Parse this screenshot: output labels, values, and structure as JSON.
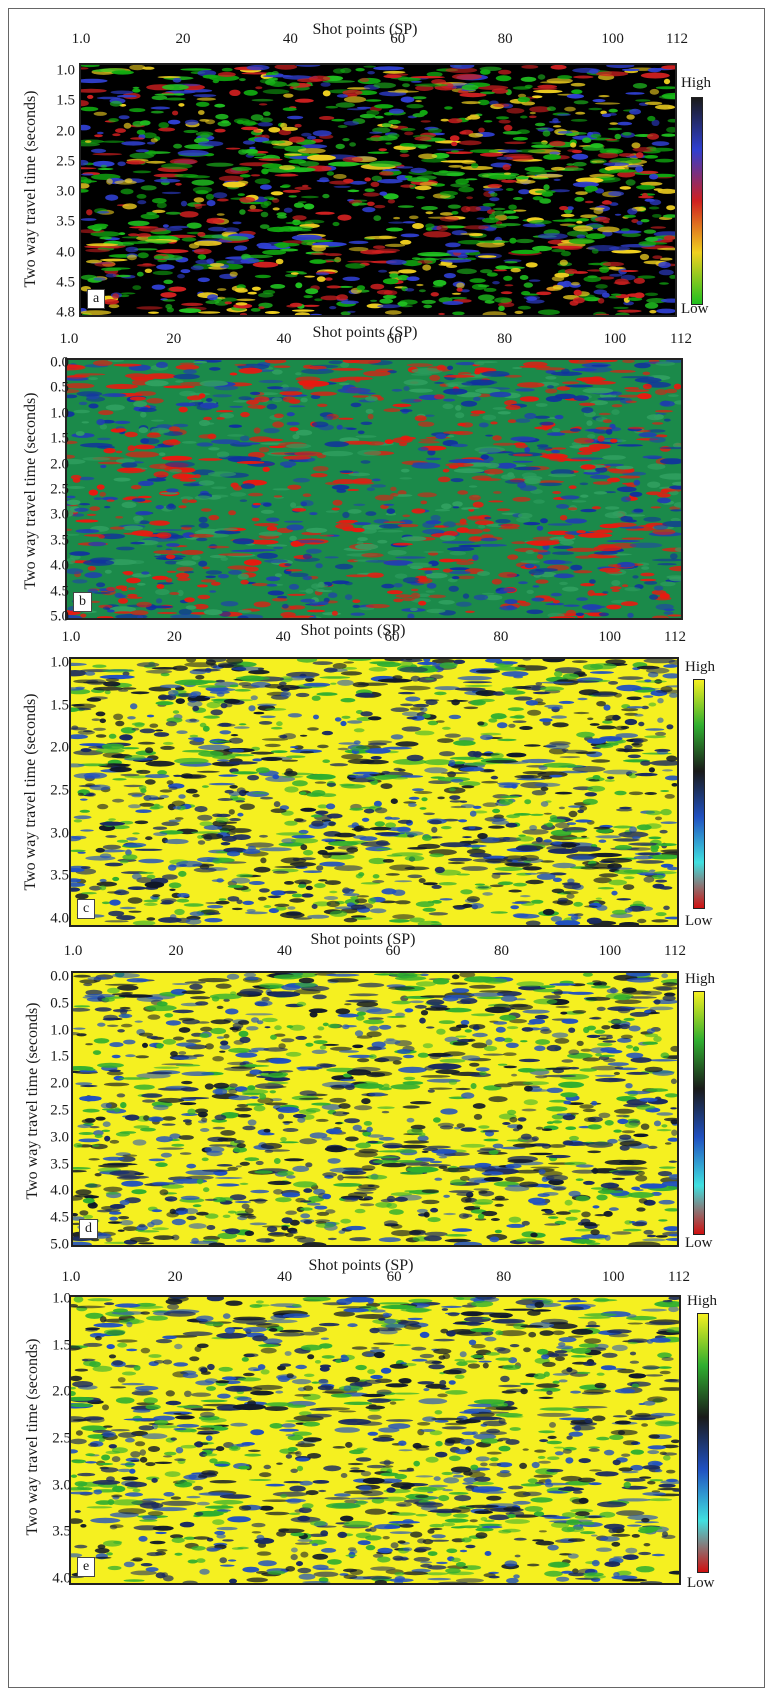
{
  "panels": [
    {
      "id": "a",
      "xlabel": "Shot points (SP)",
      "ylabel": "Two way travel time (seconds)",
      "xticks": [
        "1.0",
        "20",
        "40",
        "60",
        "80",
        "100",
        "112"
      ],
      "yticks": [
        "1.0",
        "1.5",
        "2.0",
        "2.5",
        "3.0",
        "3.5",
        "4.0",
        "4.5",
        "4.8"
      ],
      "legend": {
        "high": "High",
        "low": "Low"
      },
      "label": "a",
      "colorbar": [
        "#1a1a1a",
        "#2f3fd0",
        "#d02020",
        "#f0d020",
        "#20c020"
      ]
    },
    {
      "id": "b",
      "xlabel": "Shot points (SP)",
      "ylabel": "Two way travel time (seconds)",
      "xticks": [
        "1.0",
        "20",
        "40",
        "60",
        "80",
        "100",
        "112"
      ],
      "yticks": [
        "0.0",
        "0.5",
        "1.0",
        "1.5",
        "2.0",
        "2.5",
        "3.0",
        "3.5",
        "4.0",
        "4.5",
        "5.0"
      ],
      "legend": null,
      "label": "b",
      "colorbar": null
    },
    {
      "id": "c",
      "xlabel": "Shot points (SP)",
      "ylabel": "Two way travel time (seconds)",
      "xticks": [
        "1.0",
        "20",
        "40",
        "60",
        "80",
        "100",
        "112"
      ],
      "yticks": [
        "1.0",
        "1.5",
        "2.0",
        "2.5",
        "3.0",
        "3.5",
        "4.0"
      ],
      "legend": {
        "high": "High",
        "low": "Low"
      },
      "label": "c",
      "colorbar": [
        "#f5f020",
        "#2fae2f",
        "#1a1a1a",
        "#2050c0",
        "#40e0e0",
        "#d01010"
      ]
    },
    {
      "id": "d",
      "xlabel": "Shot points (SP)",
      "ylabel": "Two way travel time (seconds)",
      "xticks": [
        "1.0",
        "20",
        "40",
        "60",
        "80",
        "100",
        "112"
      ],
      "yticks": [
        "0.0",
        "0.5",
        "1.0",
        "1.5",
        "2.0",
        "2.5",
        "3.0",
        "3.5",
        "4.0",
        "4.5",
        "5.0"
      ],
      "legend": {
        "high": "High",
        "low": "Low"
      },
      "label": "d",
      "colorbar": [
        "#f5f020",
        "#2fae2f",
        "#1a1a1a",
        "#2050c0",
        "#40e0e0",
        "#d01010"
      ]
    },
    {
      "id": "e",
      "xlabel": "Shot points (SP)",
      "ylabel": "Two way travel time (seconds)",
      "xticks": [
        "1.0",
        "20",
        "40",
        "60",
        "80",
        "100",
        "112"
      ],
      "yticks": [
        "1.0",
        "1.5",
        "2.0",
        "2.5",
        "3.0",
        "3.5",
        "4.0"
      ],
      "legend": {
        "high": "High",
        "low": "Low"
      },
      "label": "e",
      "colorbar": [
        "#f5f020",
        "#2fae2f",
        "#1a1a1a",
        "#2050c0",
        "#40e0e0",
        "#d01010"
      ]
    }
  ],
  "textures": {
    "a": {
      "bg": "#000000",
      "palette": [
        "#20c020",
        "#f0d020",
        "#d02020",
        "#2f3fd0",
        "#11aa11"
      ]
    },
    "b": {
      "bg": "#1b8a4a",
      "palette": [
        "#e81a10",
        "#e81a10",
        "#2040b0",
        "#30a060",
        "#1030a0"
      ]
    },
    "c": {
      "bg": "#f5f020",
      "palette": [
        "#1a2a60",
        "#2050c0",
        "#2fae2f",
        "#101828"
      ]
    },
    "d": {
      "bg": "#f5f020",
      "palette": [
        "#1a2a60",
        "#2050c0",
        "#2fae2f",
        "#101828"
      ]
    },
    "e": {
      "bg": "#f5f020",
      "palette": [
        "#1a2a60",
        "#2050c0",
        "#2fae2f",
        "#101828"
      ]
    }
  }
}
